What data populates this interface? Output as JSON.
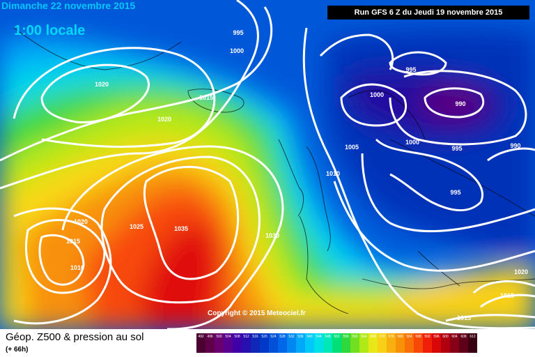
{
  "header": {
    "date": "Dimanche 22 novembre 2015",
    "time": "1:00 locale",
    "run": "Run GFS 6 Z du Jeudi 19 novembre 2015"
  },
  "copyright": "Copyright © 2015 Meteociel.fr",
  "legend": {
    "title": "Géop. Z500 & pression au sol",
    "subtitle": "(+ 66h)",
    "scale": [
      {
        "label": "492",
        "color": "#4a0030"
      },
      {
        "label": "496",
        "color": "#600048"
      },
      {
        "label": "500",
        "color": "#6a0070"
      },
      {
        "label": "504",
        "color": "#5a0090"
      },
      {
        "label": "508",
        "color": "#4000a8"
      },
      {
        "label": "512",
        "color": "#2810b0"
      },
      {
        "label": "516",
        "color": "#1028b8"
      },
      {
        "label": "520",
        "color": "#0038c8"
      },
      {
        "label": "524",
        "color": "#0050d8"
      },
      {
        "label": "528",
        "color": "#0068e8"
      },
      {
        "label": "532",
        "color": "#0088f0"
      },
      {
        "label": "536",
        "color": "#00a8f8"
      },
      {
        "label": "540",
        "color": "#00c8f8"
      },
      {
        "label": "544",
        "color": "#00e0e8"
      },
      {
        "label": "548",
        "color": "#00e8b8"
      },
      {
        "label": "552",
        "color": "#00e078"
      },
      {
        "label": "556",
        "color": "#30d840"
      },
      {
        "label": "560",
        "color": "#70e020"
      },
      {
        "label": "564",
        "color": "#b0e818"
      },
      {
        "label": "568",
        "color": "#e8e818"
      },
      {
        "label": "572",
        "color": "#f8d018"
      },
      {
        "label": "576",
        "color": "#f8b010"
      },
      {
        "label": "580",
        "color": "#f89008"
      },
      {
        "label": "584",
        "color": "#f87008"
      },
      {
        "label": "588",
        "color": "#f84808"
      },
      {
        "label": "592",
        "color": "#f02008"
      },
      {
        "label": "596",
        "color": "#d80808"
      },
      {
        "label": "600",
        "color": "#b00010"
      },
      {
        "label": "604",
        "color": "#880018"
      },
      {
        "label": "608",
        "color": "#600018"
      },
      {
        "label": "612",
        "color": "#380010"
      }
    ]
  },
  "isobar_labels": [
    "995",
    "1000",
    "995",
    "1000",
    "990",
    "1020",
    "1015",
    "1020",
    "1005",
    "1000",
    "995",
    "990",
    "1010",
    "995",
    "1025",
    "1035",
    "1030",
    "1020",
    "1015",
    "1010",
    "1020",
    "1015",
    "1015"
  ]
}
